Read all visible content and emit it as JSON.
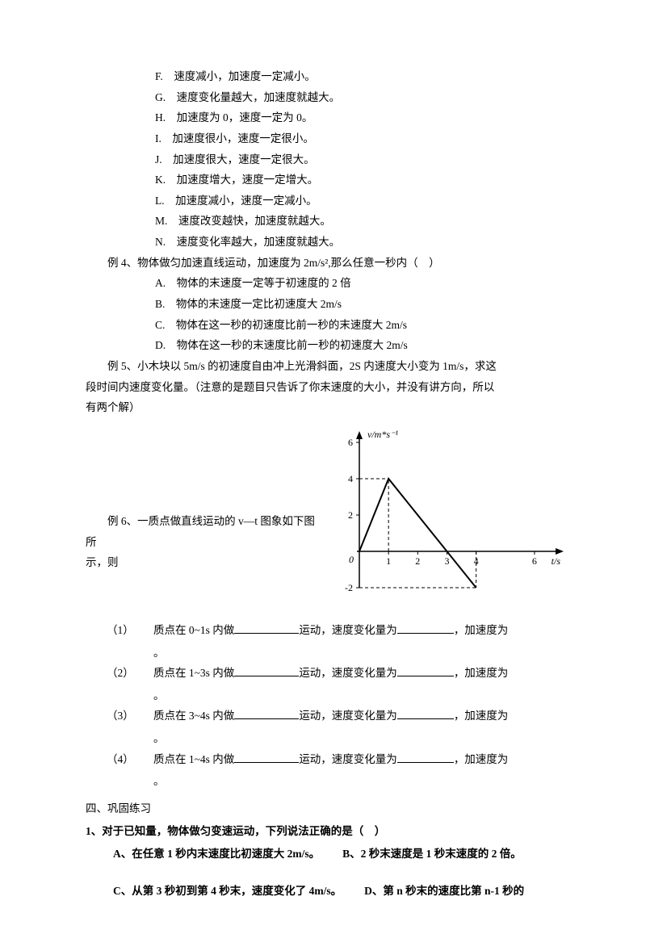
{
  "opts": {
    "F": "速度减小，加速度一定减小。",
    "G": "速度变化量越大，加速度就越大。",
    "H": "加速度为 0，速度一定为 0。",
    "I": "加速度很小，速度一定很小。",
    "J": "加速度很大，速度一定很大。",
    "K": "加速度增大，速度一定增大。",
    "L": "加速度减小，速度一定减小。",
    "M": "速度改变越快，加速度就越大。",
    "N": "速度变化率越大，加速度就越大。"
  },
  "ex4": {
    "stem": "例 4、物体做匀加速直线运动，加速度为 2m/s²,那么任意一秒内（　）",
    "A": "物体的末速度一定等于初速度的 2 倍",
    "B": "物体的末速度一定比初速度大 2m/s",
    "C": "物体在这一秒的初速度比前一秒的末速度大 2m/s",
    "D": "物体在这一秒的末速度比前一秒的初速度大 2m/s"
  },
  "ex5": {
    "l1": "例 5、小木块以 5m/s 的初速度自由冲上光滑斜面，2S 内速度大小变为 1m/s，求这",
    "l2": "段时间内速度变化量。（注意的是题目只告诉了你末速度的大小，并没有讲方向，所以",
    "l3": "有两个解）"
  },
  "ex6": {
    "l1": "例 6、一质点做直线运动的 v—t 图象如下图所",
    "l2": "示，则"
  },
  "chart": {
    "y_label": "v/m*s⁻¹",
    "x_label": "t/s",
    "y_ticks": [
      -2,
      0,
      2,
      4,
      6
    ],
    "x_ticks": [
      0,
      1,
      2,
      3,
      4,
      6
    ],
    "y_min": -2,
    "y_max": 6,
    "x_min": 0,
    "x_max": 6.5,
    "line_points": [
      [
        0,
        0
      ],
      [
        1,
        4
      ],
      [
        3,
        0
      ],
      [
        4,
        -2
      ]
    ],
    "dash_lines": [
      {
        "from": [
          1,
          0
        ],
        "to": [
          1,
          4
        ]
      },
      {
        "from": [
          0,
          4
        ],
        "to": [
          1,
          4
        ]
      },
      {
        "from": [
          4,
          0
        ],
        "to": [
          4,
          -2
        ]
      },
      {
        "from": [
          0,
          -2
        ],
        "to": [
          4,
          -2
        ]
      }
    ],
    "axis_color": "#000000",
    "line_color": "#000000",
    "font_size": 12,
    "font_style_y": "italic"
  },
  "fills": {
    "f1": {
      "num": "（1）",
      "a": "质点在 0~1s 内做",
      "b": "运动，速度变化量为",
      "c": "，加速度为"
    },
    "f2": {
      "num": "（2）",
      "a": "质点在 1~3s 内做",
      "b": "运动，速度变化量为",
      "c": "，加速度为"
    },
    "f3": {
      "num": "（3）",
      "a": "质点在 3~4s 内做",
      "b": "运动，速度变化量为",
      "c": "，加速度为"
    },
    "f4": {
      "num": "（4）",
      "a": "质点在 1~4s 内做",
      "b": "运动，速度变化量为",
      "c": "，加速度为"
    },
    "period": "。"
  },
  "sec4": "四、巩固练习",
  "q1": {
    "stem": "1、对于已知量，物体做匀变速运动，下列说法正确的是（　）",
    "A": "A、在任意 1 秒内末速度比初速度大 2m/s。",
    "B": "B、2 秒末速度是 1 秒末速度的 2 倍。",
    "C": "C、从第 3 秒初到第 4 秒末，速度变化了 4m/s。",
    "D": "D、第 n 秒末的速度比第 n-1 秒的"
  }
}
